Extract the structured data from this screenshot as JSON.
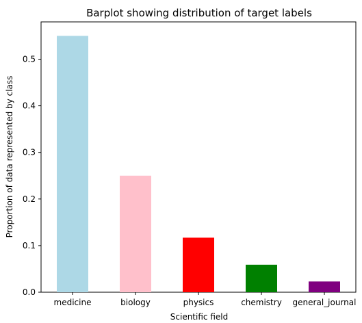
{
  "chart_data": {
    "type": "bar",
    "title": "Barplot showing distribution of target labels",
    "xlabel": "Scientific field",
    "ylabel": "Proportion of data represented by class",
    "categories": [
      "medicine",
      "biology",
      "physics",
      "chemistry",
      "general_journal"
    ],
    "values": [
      0.55,
      0.25,
      0.117,
      0.059,
      0.023
    ],
    "colors": [
      "#add8e6",
      "#ffc0cb",
      "#ff0000",
      "#008000",
      "#800080"
    ],
    "ylim": [
      0,
      0.58
    ],
    "yticks": [
      0.0,
      0.1,
      0.2,
      0.3,
      0.4,
      0.5
    ],
    "ytick_labels": [
      "0.0",
      "0.1",
      "0.2",
      "0.3",
      "0.4",
      "0.5"
    ],
    "grid": false,
    "legend": "none"
  }
}
